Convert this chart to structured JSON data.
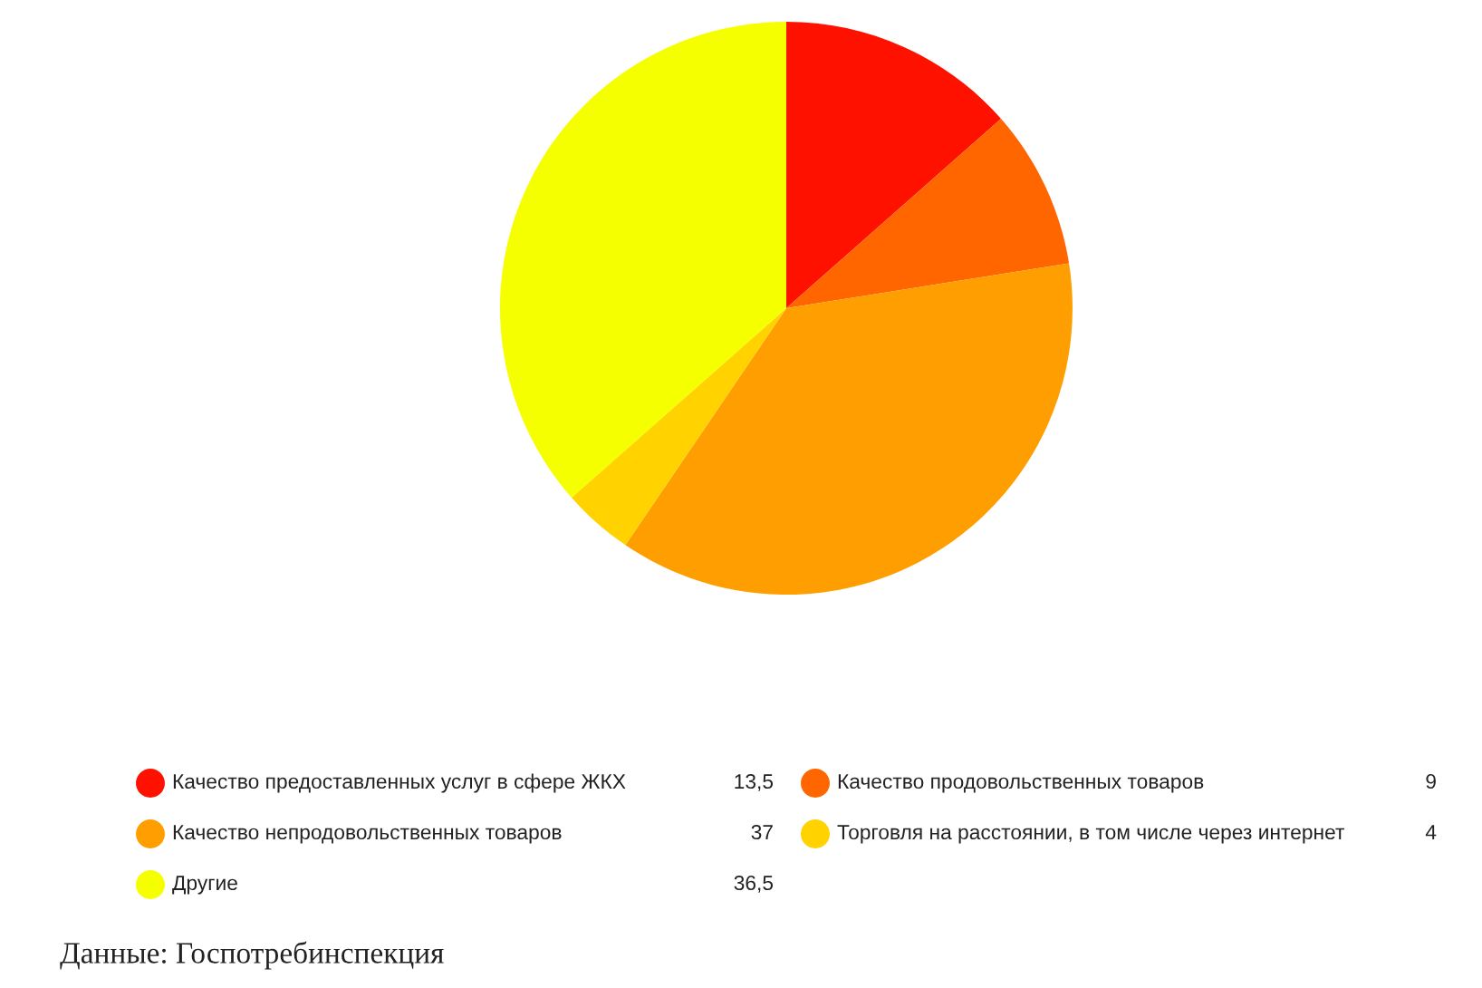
{
  "chart_data": {
    "type": "pie",
    "categories": [
      "Качество предоставленных услуг в сфере ЖКХ",
      "Качество продовольственных товаров",
      "Качество непродовольственных товаров",
      "Торговля на расстоянии, в том числе через интернет",
      "Другие"
    ],
    "values": [
      13.5,
      9,
      37,
      4,
      36.5
    ],
    "value_labels": [
      "13,5",
      "9",
      "37",
      "4",
      "36,5"
    ],
    "colors": [
      "#ff1100",
      "#ff6600",
      "#ff9e00",
      "#ffd200",
      "#f5ff00"
    ],
    "legend": "bottom",
    "annotations": [
      "Данные: Госпотребинспекция"
    ]
  }
}
